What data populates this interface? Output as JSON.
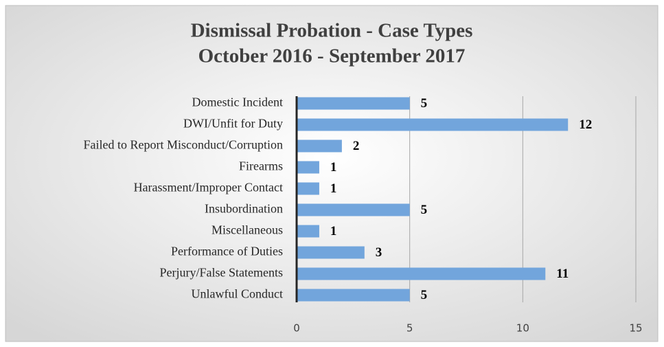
{
  "chart_data": {
    "type": "bar",
    "orientation": "horizontal",
    "title": "Dismissal Probation - Case Types",
    "subtitle": "October 2016 - September 2017",
    "categories": [
      "Domestic Incident",
      "DWI/Unfit for Duty",
      "Failed to Report Misconduct/Corruption",
      "Firearms",
      "Harassment/Improper Contact",
      "Insubordination",
      "Miscellaneous",
      "Performance of Duties",
      "Perjury/False Statements",
      "Unlawful Conduct"
    ],
    "values": [
      5,
      12,
      2,
      1,
      1,
      5,
      1,
      3,
      11,
      5
    ],
    "color": "#72a5dc",
    "xlim": [
      0,
      15
    ],
    "xticks": [
      0,
      5,
      10,
      15
    ],
    "grid": true
  }
}
